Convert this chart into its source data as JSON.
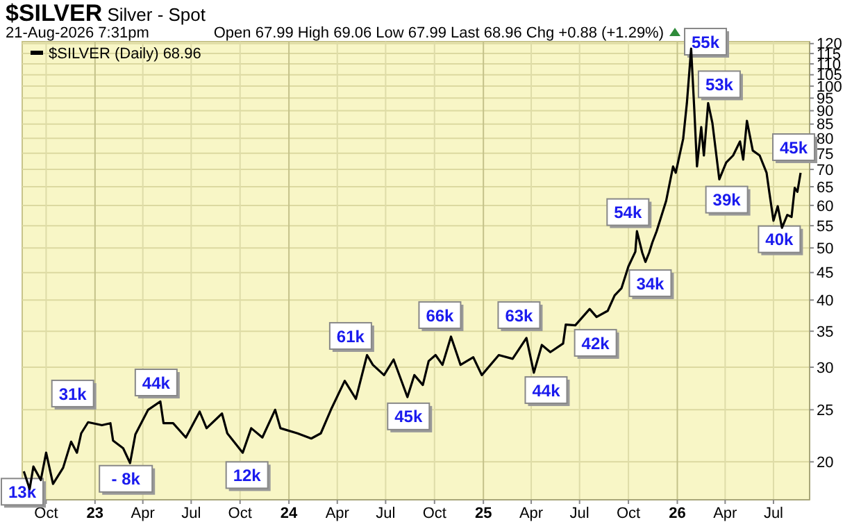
{
  "chart_data": {
    "type": "line",
    "title": "$SILVER Silver - Spot",
    "subtitle": "21-Aug-2026 7:31pm",
    "log": true,
    "grid": true,
    "legend": "top left",
    "marker": "none",
    "line_style": "solid",
    "xlim": [
      "2022-08-17",
      "2026-09-07"
    ],
    "ylim": [
      17,
      121
    ],
    "xticks": [
      {
        "value": "2022-10-01",
        "label": "Oct"
      },
      {
        "value": "2023-01-01",
        "label": "23"
      },
      {
        "value": "2023-04-01",
        "label": "Apr"
      },
      {
        "value": "2023-07-01",
        "label": "Jul"
      },
      {
        "value": "2023-10-01",
        "label": "Oct"
      },
      {
        "value": "2024-01-01",
        "label": "24"
      },
      {
        "value": "2024-04-01",
        "label": "Apr"
      },
      {
        "value": "2024-07-01",
        "label": "Jul"
      },
      {
        "value": "2024-10-01",
        "label": "Oct"
      },
      {
        "value": "2025-01-01",
        "label": "25"
      },
      {
        "value": "2025-04-01",
        "label": "Apr"
      },
      {
        "value": "2025-07-01",
        "label": "Jul"
      },
      {
        "value": "2025-10-01",
        "label": "Oct"
      },
      {
        "value": "2026-01-01",
        "label": "26"
      },
      {
        "value": "2026-04-01",
        "label": "Apr"
      },
      {
        "value": "2026-07-01",
        "label": "Jul"
      }
    ],
    "yticks": [
      20,
      25,
      30,
      35,
      40,
      45,
      50,
      55,
      60,
      65,
      70,
      75,
      80,
      85,
      90,
      95,
      100,
      105,
      110,
      115,
      120
    ],
    "series": [
      {
        "name": "$SILVER (Daily) 68.96",
        "color": "#000000",
        "x": [
          "2022-08-20",
          "2022-08-31",
          "2022-09-07",
          "2022-09-21",
          "2022-10-01",
          "2022-10-14",
          "2022-11-02",
          "2022-11-17",
          "2022-11-28",
          "2022-12-06",
          "2022-12-19",
          "2023-01-14",
          "2023-01-30",
          "2023-02-04",
          "2023-02-23",
          "2023-03-08",
          "2023-03-18",
          "2023-04-11",
          "2023-05-04",
          "2023-05-10",
          "2023-05-28",
          "2023-06-21",
          "2023-07-17",
          "2023-07-30",
          "2023-08-28",
          "2023-09-07",
          "2023-10-06",
          "2023-10-22",
          "2023-11-12",
          "2023-12-06",
          "2023-12-16",
          "2024-01-17",
          "2024-02-12",
          "2024-03-01",
          "2024-03-20",
          "2024-04-15",
          "2024-05-06",
          "2024-05-27",
          "2024-06-07",
          "2024-06-28",
          "2024-07-16",
          "2024-08-11",
          "2024-08-24",
          "2024-09-09",
          "2024-09-20",
          "2024-10-03",
          "2024-10-16",
          "2024-11-01",
          "2024-11-19",
          "2024-12-13",
          "2024-12-29",
          "2025-01-30",
          "2025-02-25",
          "2025-03-23",
          "2025-04-06",
          "2025-04-21",
          "2025-05-07",
          "2025-05-31",
          "2025-06-05",
          "2025-06-23",
          "2025-07-20",
          "2025-08-02",
          "2025-08-23",
          "2025-09-05",
          "2025-09-18",
          "2025-10-01",
          "2025-10-14",
          "2025-10-17",
          "2025-10-27",
          "2025-11-02",
          "2025-11-09",
          "2025-11-15",
          "2025-11-23",
          "2025-12-11",
          "2025-12-24",
          "2025-12-29",
          "2026-01-12",
          "2026-01-19",
          "2026-01-27",
          "2026-02-02",
          "2026-02-07",
          "2026-02-15",
          "2026-02-20",
          "2026-02-28",
          "2026-03-08",
          "2026-03-21",
          "2026-04-03",
          "2026-04-16",
          "2026-04-29",
          "2026-05-05",
          "2026-05-12",
          "2026-05-23",
          "2026-06-05",
          "2026-06-18",
          "2026-06-23",
          "2026-07-01",
          "2026-07-09",
          "2026-07-17",
          "2026-07-27",
          "2026-08-04",
          "2026-08-10",
          "2026-08-15",
          "2026-08-21"
        ],
        "values": [
          19.2,
          17.8,
          19.6,
          18.5,
          20.8,
          18.2,
          19.5,
          21.8,
          20.8,
          22.6,
          23.7,
          23.4,
          23.6,
          21.9,
          21.2,
          19.9,
          22.5,
          25.0,
          25.9,
          23.6,
          23.6,
          22.2,
          24.8,
          23.1,
          24.6,
          22.6,
          20.8,
          23.1,
          22.2,
          25.0,
          23.1,
          22.6,
          22.1,
          22.6,
          25.0,
          28.3,
          26.2,
          31.6,
          30.3,
          29.0,
          31.0,
          26.4,
          29.0,
          27.8,
          30.8,
          31.6,
          30.3,
          34.2,
          30.3,
          31.3,
          29.0,
          31.6,
          31.1,
          34.0,
          29.3,
          33.0,
          32.0,
          33.2,
          36.0,
          35.9,
          38.5,
          37.2,
          38.2,
          40.8,
          42.1,
          46.2,
          49.2,
          53.7,
          49,
          47.1,
          49,
          51.2,
          53.7,
          61.2,
          70.9,
          69,
          79.8,
          93.0,
          117.4,
          90.3,
          70.9,
          83.9,
          74.3,
          93.0,
          85.4,
          67.1,
          72.1,
          74.3,
          78.9,
          73.0,
          86.2,
          75.9,
          74.3,
          69.0,
          63.6,
          56.2,
          59.8,
          54.5,
          57.6,
          57.1,
          64.7,
          63.6,
          68.96
        ]
      }
    ],
    "annotations": [
      "Open 67.99 High 69.06 Low 67.99 Last 68.96 Chg +0.88 (+1.29%)",
      {
        "text": "13k",
        "x": "2022-08-17",
        "y": 17.6
      },
      {
        "text": "31k",
        "x": "2022-11-20",
        "y": 26.8
      },
      {
        "text": "- 8k",
        "x": "2023-02-28",
        "y": 18.6
      },
      {
        "text": "44k",
        "x": "2023-04-26",
        "y": 28.1
      },
      {
        "text": "12k",
        "x": "2023-10-14",
        "y": 18.9
      },
      {
        "text": "61k",
        "x": "2024-04-26",
        "y": 34.3
      },
      {
        "text": "45k",
        "x": "2024-08-13",
        "y": 24.3
      },
      {
        "text": "66k",
        "x": "2024-10-11",
        "y": 37.5
      },
      {
        "text": "63k",
        "x": "2025-03-09",
        "y": 37.5
      },
      {
        "text": "44k",
        "x": "2025-04-29",
        "y": 27.2
      },
      {
        "text": "42k",
        "x": "2025-07-31",
        "y": 33.3
      },
      {
        "text": "54k",
        "x": "2025-09-30",
        "y": 58.3
      },
      {
        "text": "34k",
        "x": "2025-11-11",
        "y": 43.0
      },
      {
        "text": "55k",
        "x": "2026-02-23",
        "y": 121
      },
      {
        "text": "53k",
        "x": "2026-03-21",
        "y": 100.8
      },
      {
        "text": "39k",
        "x": "2026-04-04",
        "y": 61.5
      },
      {
        "text": "40k",
        "x": "2026-07-12",
        "y": 51.9
      },
      {
        "text": "45k",
        "x": "2026-08-08",
        "y": 77
      }
    ]
  }
}
